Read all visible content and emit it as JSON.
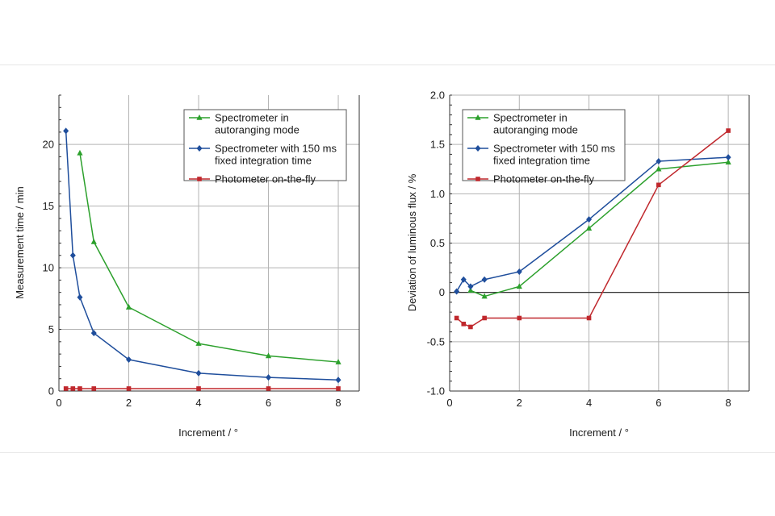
{
  "colors": {
    "green": "#2ca02c",
    "blue": "#1f4e9c",
    "red": "#c0282d",
    "grid": "#b3b3b3"
  },
  "legend": {
    "entries": [
      {
        "key": "green",
        "marker": "triangle",
        "lines": [
          "Spectrometer in",
          "autoranging mode"
        ]
      },
      {
        "key": "blue",
        "marker": "diamond",
        "lines": [
          "Spectrometer with 150 ms",
          "fixed integration time"
        ]
      },
      {
        "key": "red",
        "marker": "square",
        "lines": [
          "Photometer on-the-fly"
        ]
      }
    ]
  },
  "chart_data": [
    {
      "type": "line",
      "xlabel": "Increment / °",
      "ylabel": "Measurement time / min",
      "xlim": [
        0,
        8.6
      ],
      "ylim": [
        0,
        24
      ],
      "xticks": [
        0,
        2,
        4,
        6,
        8
      ],
      "yticks": [
        0,
        5,
        10,
        15,
        20
      ],
      "grid": true,
      "legend_position": "top-right",
      "series": [
        {
          "name": "Spectrometer in autoranging mode",
          "color_key": "green",
          "marker": "triangle",
          "x": [
            0.6,
            1,
            2,
            4,
            6,
            8
          ],
          "y": [
            19.3,
            12.1,
            6.8,
            3.85,
            2.85,
            2.35
          ]
        },
        {
          "name": "Spectrometer with 150 ms fixed integration time",
          "color_key": "blue",
          "marker": "diamond",
          "x": [
            0.2,
            0.4,
            0.6,
            1,
            2,
            4,
            6,
            8
          ],
          "y": [
            21.1,
            11.0,
            7.6,
            4.7,
            2.55,
            1.45,
            1.1,
            0.9
          ]
        },
        {
          "name": "Photometer on-the-fly",
          "color_key": "red",
          "marker": "square",
          "x": [
            0.2,
            0.4,
            0.6,
            1,
            2,
            4,
            6,
            8
          ],
          "y": [
            0.2,
            0.2,
            0.2,
            0.2,
            0.2,
            0.2,
            0.2,
            0.2
          ]
        }
      ]
    },
    {
      "type": "line",
      "xlabel": "Increment / °",
      "ylabel": "Deviation of luminous flux / %",
      "xlim": [
        0,
        8.6
      ],
      "ylim": [
        -1.0,
        2.0
      ],
      "xticks": [
        0,
        2,
        4,
        6,
        8
      ],
      "yticks": [
        -1.0,
        -0.5,
        0,
        0.5,
        1.0,
        1.5,
        2.0
      ],
      "ytick_labels": [
        "-1.0",
        "-0.5",
        "0",
        "0.5",
        "1.0",
        "1.5",
        "2.0"
      ],
      "grid": true,
      "zero_line": true,
      "legend_position": "top-left",
      "series": [
        {
          "name": "Spectrometer in autoranging mode",
          "color_key": "green",
          "marker": "triangle",
          "x": [
            0.6,
            1,
            2,
            4,
            6,
            8
          ],
          "y": [
            0.02,
            -0.04,
            0.06,
            0.65,
            1.25,
            1.32
          ]
        },
        {
          "name": "Spectrometer with 150 ms fixed integration time",
          "color_key": "blue",
          "marker": "diamond",
          "x": [
            0.2,
            0.4,
            0.6,
            1,
            2,
            4,
            6,
            8
          ],
          "y": [
            0.01,
            0.13,
            0.06,
            0.13,
            0.21,
            0.74,
            1.33,
            1.37
          ]
        },
        {
          "name": "Photometer on-the-fly",
          "color_key": "red",
          "marker": "square",
          "x": [
            0.2,
            0.4,
            0.6,
            1,
            2,
            4,
            6,
            8
          ],
          "y": [
            -0.26,
            -0.32,
            -0.35,
            -0.26,
            -0.26,
            -0.26,
            1.09,
            1.64
          ]
        }
      ]
    }
  ]
}
